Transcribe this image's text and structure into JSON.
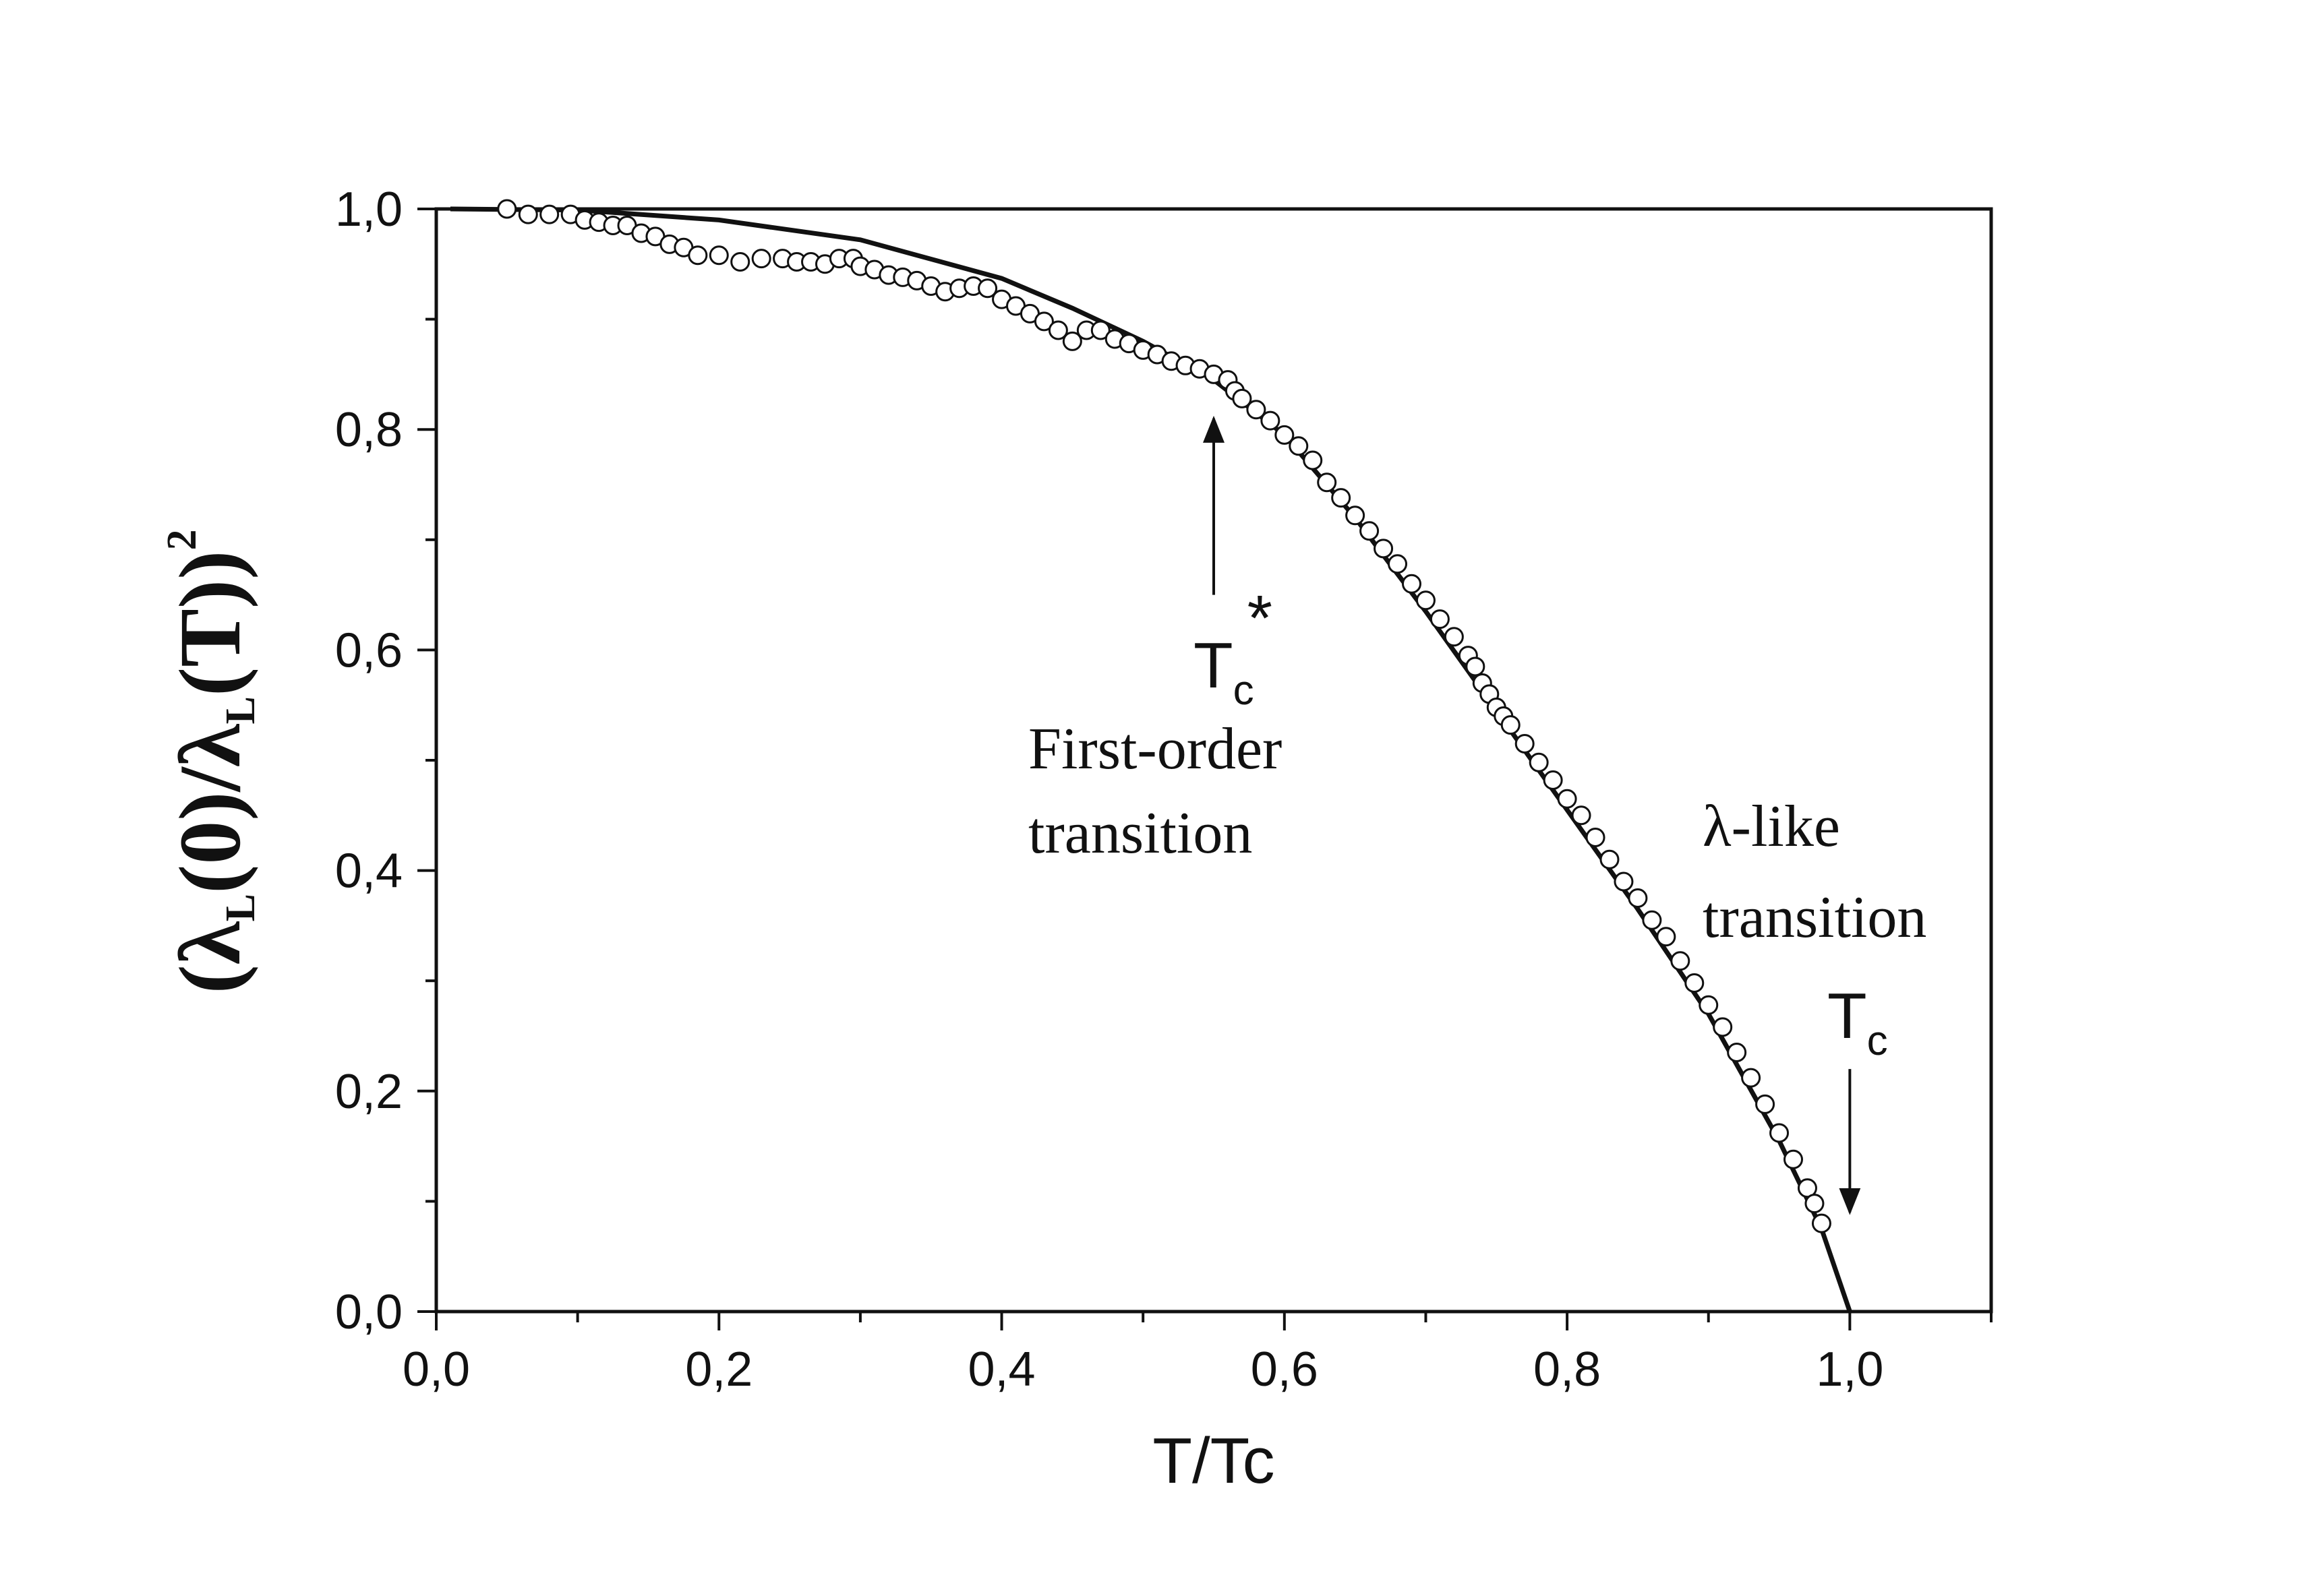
{
  "chart_data": {
    "type": "scatter",
    "xlabel": "T/Tc",
    "ylabel": {
      "open": "(λ",
      "sub1": "L",
      "mid": "(0)/λ",
      "sub2": "L",
      "close": "(T))",
      "sup": "2"
    },
    "xlim": [
      0.0,
      1.1
    ],
    "ylim": [
      0.0,
      1.0
    ],
    "x_ticks": [
      "0,0",
      "0,2",
      "0,4",
      "0,6",
      "0,8",
      "1,0"
    ],
    "x_tick_values": [
      0.0,
      0.2,
      0.4,
      0.6,
      0.8,
      1.0
    ],
    "y_ticks": [
      "0,0",
      "0,2",
      "0,4",
      "0,6",
      "0,8",
      "1,0"
    ],
    "y_tick_values": [
      0.0,
      0.2,
      0.4,
      0.6,
      0.8,
      1.0
    ],
    "grid": false,
    "series": [
      {
        "kind": "points",
        "marker": "open-circle",
        "points": [
          [
            0.05,
            1.0
          ],
          [
            0.065,
            0.995
          ],
          [
            0.08,
            0.995
          ],
          [
            0.095,
            0.995
          ],
          [
            0.105,
            0.99
          ],
          [
            0.115,
            0.988
          ],
          [
            0.125,
            0.985
          ],
          [
            0.135,
            0.985
          ],
          [
            0.145,
            0.978
          ],
          [
            0.155,
            0.975
          ],
          [
            0.165,
            0.968
          ],
          [
            0.175,
            0.965
          ],
          [
            0.185,
            0.958
          ],
          [
            0.2,
            0.958
          ],
          [
            0.215,
            0.952
          ],
          [
            0.23,
            0.955
          ],
          [
            0.245,
            0.955
          ],
          [
            0.255,
            0.952
          ],
          [
            0.265,
            0.952
          ],
          [
            0.275,
            0.95
          ],
          [
            0.285,
            0.955
          ],
          [
            0.295,
            0.955
          ],
          [
            0.3,
            0.948
          ],
          [
            0.31,
            0.945
          ],
          [
            0.32,
            0.94
          ],
          [
            0.33,
            0.938
          ],
          [
            0.34,
            0.935
          ],
          [
            0.35,
            0.93
          ],
          [
            0.36,
            0.925
          ],
          [
            0.37,
            0.928
          ],
          [
            0.38,
            0.93
          ],
          [
            0.39,
            0.928
          ],
          [
            0.4,
            0.918
          ],
          [
            0.41,
            0.912
          ],
          [
            0.42,
            0.905
          ],
          [
            0.43,
            0.898
          ],
          [
            0.44,
            0.89
          ],
          [
            0.45,
            0.88
          ],
          [
            0.46,
            0.89
          ],
          [
            0.47,
            0.89
          ],
          [
            0.48,
            0.882
          ],
          [
            0.49,
            0.878
          ],
          [
            0.5,
            0.872
          ],
          [
            0.51,
            0.868
          ],
          [
            0.52,
            0.862
          ],
          [
            0.53,
            0.858
          ],
          [
            0.54,
            0.855
          ],
          [
            0.55,
            0.85
          ],
          [
            0.56,
            0.845
          ],
          [
            0.565,
            0.835
          ],
          [
            0.57,
            0.828
          ],
          [
            0.58,
            0.818
          ],
          [
            0.59,
            0.808
          ],
          [
            0.6,
            0.795
          ],
          [
            0.61,
            0.785
          ],
          [
            0.62,
            0.772
          ],
          [
            0.63,
            0.752
          ],
          [
            0.64,
            0.738
          ],
          [
            0.65,
            0.722
          ],
          [
            0.66,
            0.708
          ],
          [
            0.67,
            0.692
          ],
          [
            0.68,
            0.678
          ],
          [
            0.69,
            0.66
          ],
          [
            0.7,
            0.645
          ],
          [
            0.71,
            0.628
          ],
          [
            0.72,
            0.612
          ],
          [
            0.73,
            0.595
          ],
          [
            0.735,
            0.585
          ],
          [
            0.74,
            0.57
          ],
          [
            0.745,
            0.56
          ],
          [
            0.75,
            0.548
          ],
          [
            0.755,
            0.54
          ],
          [
            0.76,
            0.532
          ],
          [
            0.77,
            0.515
          ],
          [
            0.78,
            0.498
          ],
          [
            0.79,
            0.482
          ],
          [
            0.8,
            0.465
          ],
          [
            0.81,
            0.45
          ],
          [
            0.82,
            0.43
          ],
          [
            0.83,
            0.41
          ],
          [
            0.84,
            0.39
          ],
          [
            0.85,
            0.375
          ],
          [
            0.86,
            0.355
          ],
          [
            0.87,
            0.34
          ],
          [
            0.88,
            0.318
          ],
          [
            0.89,
            0.298
          ],
          [
            0.9,
            0.278
          ],
          [
            0.91,
            0.258
          ],
          [
            0.92,
            0.235
          ],
          [
            0.93,
            0.212
          ],
          [
            0.94,
            0.188
          ],
          [
            0.95,
            0.162
          ],
          [
            0.96,
            0.138
          ],
          [
            0.97,
            0.112
          ],
          [
            0.975,
            0.098
          ],
          [
            0.98,
            0.08
          ]
        ]
      },
      {
        "kind": "line",
        "marker": "none",
        "points": [
          [
            0.01,
            1.0
          ],
          [
            0.1,
            0.999
          ],
          [
            0.2,
            0.99
          ],
          [
            0.3,
            0.972
          ],
          [
            0.4,
            0.937
          ],
          [
            0.45,
            0.91
          ],
          [
            0.5,
            0.88
          ],
          [
            0.55,
            0.845
          ],
          [
            0.6,
            0.795
          ],
          [
            0.65,
            0.72
          ],
          [
            0.7,
            0.635
          ],
          [
            0.75,
            0.545
          ],
          [
            0.8,
            0.455
          ],
          [
            0.85,
            0.365
          ],
          [
            0.9,
            0.27
          ],
          [
            0.95,
            0.155
          ],
          [
            0.98,
            0.075
          ],
          [
            1.0,
            0.0
          ]
        ]
      }
    ],
    "annotations": {
      "tc_star": {
        "main": "T",
        "sub": "c",
        "sup": "*",
        "arrow_x": 0.55,
        "arrow_from_y": 0.65,
        "arrow_to_y": 0.81
      },
      "first_order": [
        "First-order",
        "transition"
      ],
      "lambda_like": [
        "λ-like",
        "transition"
      ],
      "tc": {
        "main": "T",
        "sub": "c",
        "arrow_x": 1.0,
        "arrow_from_y": 0.22,
        "arrow_to_y": 0.09
      }
    }
  }
}
